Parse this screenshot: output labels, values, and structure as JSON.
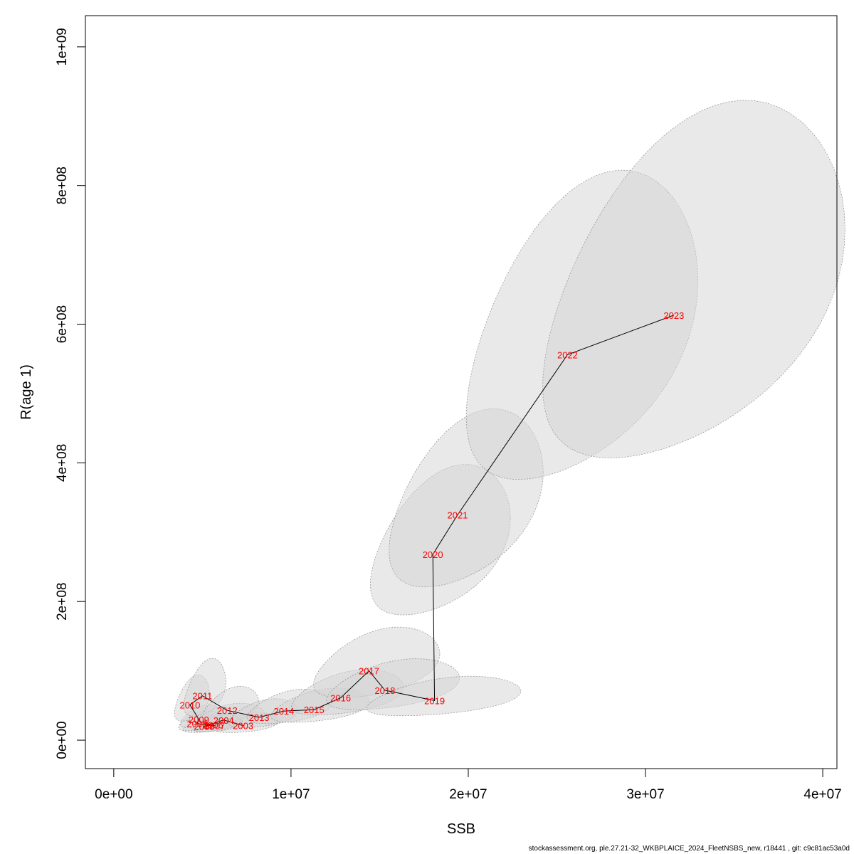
{
  "chart_data": {
    "type": "scatter",
    "xlabel": "SSB",
    "ylabel": "R(age 1)",
    "xlim": [
      -1600000,
      40800000
    ],
    "ylim": [
      -41000000,
      1045000000
    ],
    "x_ticks": [
      0,
      10000000,
      20000000,
      30000000,
      40000000
    ],
    "x_tick_labels": [
      "0e+00",
      "1e+07",
      "2e+07",
      "3e+07",
      "4e+07"
    ],
    "y_ticks": [
      0,
      200000000,
      400000000,
      600000000,
      800000000,
      1000000000
    ],
    "y_tick_labels": [
      "0e+00",
      "2e+08",
      "4e+08",
      "6e+08",
      "8e+08",
      "1e+09"
    ],
    "grid": false,
    "connect_points": true,
    "ellipse_fill": "#d3d3d3",
    "ellipse_stroke": "#999999",
    "line_color": "#000000",
    "label_color": "#ff0000",
    "points": [
      {
        "year": "2003",
        "ssb": 7300000,
        "r": 21000000,
        "sd_ssb": 900000,
        "sd_r": 7000000
      },
      {
        "year": "2004",
        "ssb": 6200000,
        "r": 29000000,
        "sd_ssb": 1000000,
        "sd_r": 9000000
      },
      {
        "year": "2005",
        "ssb": 5100000,
        "r": 20000000,
        "sd_ssb": 700000,
        "sd_r": 6000000
      },
      {
        "year": "2006",
        "ssb": 5600000,
        "r": 22000000,
        "sd_ssb": 700000,
        "sd_r": 6000000
      },
      {
        "year": "2007",
        "ssb": 5700000,
        "r": 21000000,
        "sd_ssb": 700000,
        "sd_r": 6000000
      },
      {
        "year": "2008",
        "ssb": 4700000,
        "r": 24000000,
        "sd_ssb": 600000,
        "sd_r": 7000000
      },
      {
        "year": "2009",
        "ssb": 4800000,
        "r": 30000000,
        "sd_ssb": 600000,
        "sd_r": 8000000
      },
      {
        "year": "2010",
        "ssb": 4300000,
        "r": 51000000,
        "sd_ssb": 500000,
        "sd_r": 16000000
      },
      {
        "year": "2011",
        "ssb": 5000000,
        "r": 64000000,
        "sd_ssb": 600000,
        "sd_r": 20000000
      },
      {
        "year": "2012",
        "ssb": 6400000,
        "r": 43000000,
        "sd_ssb": 800000,
        "sd_r": 13000000
      },
      {
        "year": "2013",
        "ssb": 8200000,
        "r": 33000000,
        "sd_ssb": 1000000,
        "sd_r": 10000000
      },
      {
        "year": "2014",
        "ssb": 9600000,
        "r": 42000000,
        "sd_ssb": 1200000,
        "sd_r": 12000000
      },
      {
        "year": "2015",
        "ssb": 11300000,
        "r": 44000000,
        "sd_ssb": 1400000,
        "sd_r": 12000000
      },
      {
        "year": "2016",
        "ssb": 12800000,
        "r": 61000000,
        "sd_ssb": 1600000,
        "sd_r": 16000000
      },
      {
        "year": "2017",
        "ssb": 14400000,
        "r": 100000000,
        "sd_ssb": 1800000,
        "sd_r": 25000000
      },
      {
        "year": "2018",
        "ssb": 15300000,
        "r": 72000000,
        "sd_ssb": 1900000,
        "sd_r": 18000000
      },
      {
        "year": "2019",
        "ssb": 18100000,
        "r": 57000000,
        "sd_ssb": 2200000,
        "sd_r": 14000000
      },
      {
        "year": "2020",
        "ssb": 18000000,
        "r": 268000000,
        "sd_ssb": 2000000,
        "sd_r": 54000000
      },
      {
        "year": "2021",
        "ssb": 19400000,
        "r": 325000000,
        "sd_ssb": 2200000,
        "sd_r": 64000000
      },
      {
        "year": "2022",
        "ssb": 25600000,
        "r": 556000000,
        "sd_ssb": 3300000,
        "sd_r": 111000000
      },
      {
        "year": "2023",
        "ssb": 31600000,
        "r": 613000000,
        "sd_ssb": 4300000,
        "sd_r": 128000000
      }
    ]
  },
  "footer_text": "stockassessment.org, ple.27.21-32_WKBPLAICE_2024_FleetNSBS_new, r18441 , git: c9c81ac53a0d"
}
